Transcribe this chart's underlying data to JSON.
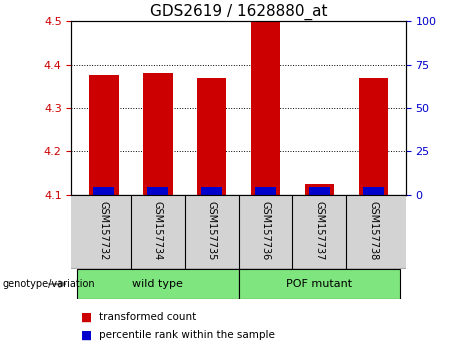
{
  "title": "GDS2619 / 1628880_at",
  "samples": [
    "GSM157732",
    "GSM157734",
    "GSM157735",
    "GSM157736",
    "GSM157737",
    "GSM157738"
  ],
  "red_values": [
    4.375,
    4.38,
    4.368,
    4.5,
    4.125,
    4.368
  ],
  "blue_values": [
    4.117,
    4.117,
    4.117,
    4.117,
    4.117,
    4.117
  ],
  "base": 4.1,
  "ylim_left": [
    4.1,
    4.5
  ],
  "ylim_right": [
    0,
    100
  ],
  "yticks_left": [
    4.1,
    4.2,
    4.3,
    4.4,
    4.5
  ],
  "yticks_right": [
    0,
    25,
    50,
    75,
    100
  ],
  "group_label": "genotype/variation",
  "wt_label": "wild type",
  "pof_label": "POF mutant",
  "legend_items": [
    {
      "color": "#CC0000",
      "label": "transformed count"
    },
    {
      "color": "#0000CC",
      "label": "percentile rank within the sample"
    }
  ],
  "bar_width": 0.55,
  "red_color": "#CC0000",
  "blue_color": "#0000CC",
  "tick_area_bg": "#D3D3D3",
  "group_bg": "#7FE57F",
  "left_tick_color": "#CC0000",
  "right_tick_color": "#0000CC",
  "title_fontsize": 11,
  "tick_fontsize": 8,
  "label_fontsize": 8,
  "grid_yticks": [
    4.2,
    4.3,
    4.4
  ]
}
